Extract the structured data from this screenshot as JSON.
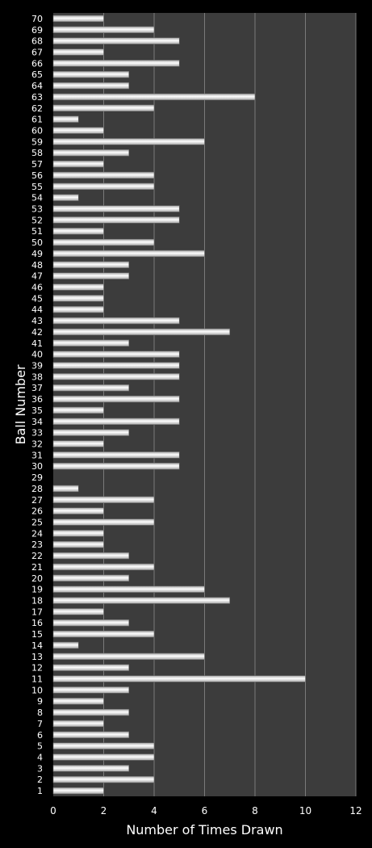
{
  "chart_data": {
    "type": "bar",
    "orientation": "horizontal",
    "xlabel": "Number of Times Drawn",
    "ylabel": "Ball Number",
    "xlim": [
      0,
      12
    ],
    "xticks": [
      "0",
      "2",
      "4",
      "6",
      "8",
      "10",
      "12"
    ],
    "grid": true,
    "legend": "none",
    "colors": {
      "background": "#000000",
      "plot_area": "#3c3c3c",
      "gridline": "#7a7a7a",
      "bar_fill": "#ffffff",
      "bar_shade": "#a8a8a8",
      "text": "#ffffff"
    },
    "categories": [
      "1",
      "2",
      "3",
      "4",
      "5",
      "6",
      "7",
      "8",
      "9",
      "10",
      "11",
      "12",
      "13",
      "14",
      "15",
      "16",
      "17",
      "18",
      "19",
      "20",
      "21",
      "22",
      "23",
      "24",
      "25",
      "26",
      "27",
      "28",
      "29",
      "30",
      "31",
      "32",
      "33",
      "34",
      "35",
      "36",
      "37",
      "38",
      "39",
      "40",
      "41",
      "42",
      "43",
      "44",
      "45",
      "46",
      "47",
      "48",
      "49",
      "50",
      "51",
      "52",
      "53",
      "54",
      "55",
      "56",
      "57",
      "58",
      "59",
      "60",
      "61",
      "62",
      "63",
      "64",
      "65",
      "66",
      "67",
      "68",
      "69",
      "70"
    ],
    "values": [
      2,
      4,
      3,
      4,
      4,
      3,
      2,
      3,
      2,
      3,
      10,
      3,
      6,
      1,
      4,
      3,
      2,
      7,
      6,
      3,
      4,
      3,
      2,
      2,
      4,
      2,
      4,
      1,
      0,
      5,
      5,
      2,
      3,
      5,
      2,
      5,
      3,
      5,
      5,
      5,
      3,
      7,
      5,
      2,
      2,
      2,
      3,
      3,
      6,
      4,
      2,
      5,
      5,
      1,
      4,
      4,
      2,
      3,
      6,
      2,
      1,
      4,
      8,
      3,
      3,
      5,
      2,
      5,
      4,
      2
    ]
  }
}
